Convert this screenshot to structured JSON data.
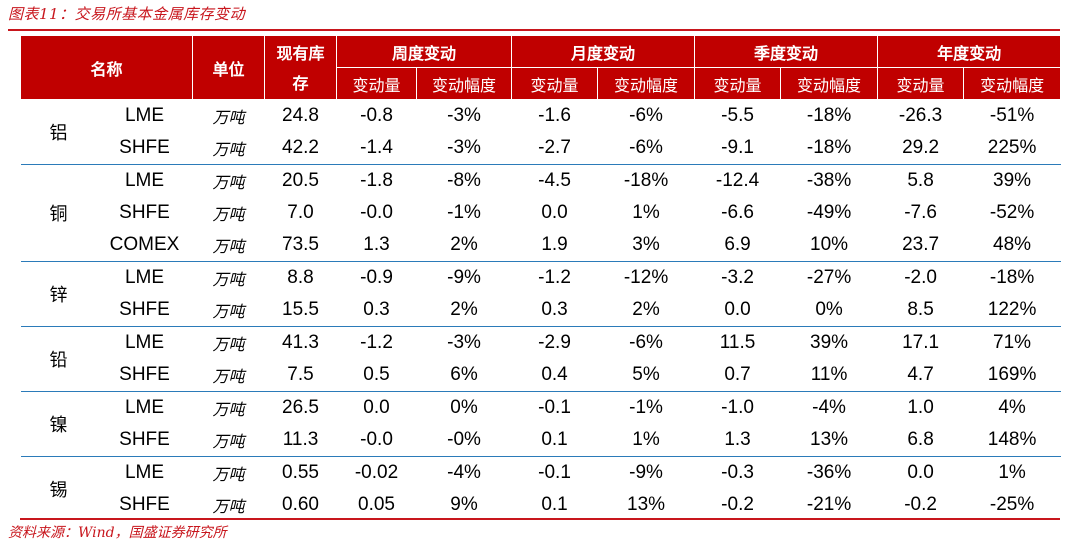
{
  "caption": "图表11：交易所基本金属库存变动",
  "source": "资料来源：Wind，国盛证券研究所",
  "header": {
    "name": "名称",
    "unit": "单位",
    "stock_line1": "现有库",
    "stock_line2": "存",
    "periods": [
      "周度变动",
      "月度变动",
      "季度变动",
      "年度变动"
    ],
    "change": "变动量",
    "change_pct": "变动幅度"
  },
  "groups": [
    {
      "metal": "铝",
      "rows": [
        {
          "exchange": "LME",
          "unit": "万吨",
          "stock": "24.8",
          "values": [
            "-0.8",
            "-3%",
            "-1.6",
            "-6%",
            "-5.5",
            "-18%",
            "-26.3",
            "-51%"
          ]
        },
        {
          "exchange": "SHFE",
          "unit": "万吨",
          "stock": "42.2",
          "values": [
            "-1.4",
            "-3%",
            "-2.7",
            "-6%",
            "-9.1",
            "-18%",
            "29.2",
            "225%"
          ]
        }
      ]
    },
    {
      "metal": "铜",
      "rows": [
        {
          "exchange": "LME",
          "unit": "万吨",
          "stock": "20.5",
          "values": [
            "-1.8",
            "-8%",
            "-4.5",
            "-18%",
            "-12.4",
            "-38%",
            "5.8",
            "39%"
          ]
        },
        {
          "exchange": "SHFE",
          "unit": "万吨",
          "stock": "7.0",
          "values": [
            "-0.0",
            "-1%",
            "0.0",
            "1%",
            "-6.6",
            "-49%",
            "-7.6",
            "-52%"
          ]
        },
        {
          "exchange": "COMEX",
          "unit": "万吨",
          "stock": "73.5",
          "values": [
            "1.3",
            "2%",
            "1.9",
            "3%",
            "6.9",
            "10%",
            "23.7",
            "48%"
          ]
        }
      ]
    },
    {
      "metal": "锌",
      "rows": [
        {
          "exchange": "LME",
          "unit": "万吨",
          "stock": "8.8",
          "values": [
            "-0.9",
            "-9%",
            "-1.2",
            "-12%",
            "-3.2",
            "-27%",
            "-2.0",
            "-18%"
          ]
        },
        {
          "exchange": "SHFE",
          "unit": "万吨",
          "stock": "15.5",
          "values": [
            "0.3",
            "2%",
            "0.3",
            "2%",
            "0.0",
            "0%",
            "8.5",
            "122%"
          ]
        }
      ]
    },
    {
      "metal": "铅",
      "rows": [
        {
          "exchange": "LME",
          "unit": "万吨",
          "stock": "41.3",
          "values": [
            "-1.2",
            "-3%",
            "-2.9",
            "-6%",
            "11.5",
            "39%",
            "17.1",
            "71%"
          ]
        },
        {
          "exchange": "SHFE",
          "unit": "万吨",
          "stock": "7.5",
          "values": [
            "0.5",
            "6%",
            "0.4",
            "5%",
            "0.7",
            "11%",
            "4.7",
            "169%"
          ]
        }
      ]
    },
    {
      "metal": "镍",
      "rows": [
        {
          "exchange": "LME",
          "unit": "万吨",
          "stock": "26.5",
          "values": [
            "0.0",
            "0%",
            "-0.1",
            "-1%",
            "-1.0",
            "-4%",
            "1.0",
            "4%"
          ]
        },
        {
          "exchange": "SHFE",
          "unit": "万吨",
          "stock": "11.3",
          "values": [
            "-0.0",
            "-0%",
            "0.1",
            "1%",
            "1.3",
            "13%",
            "6.8",
            "148%"
          ]
        }
      ]
    },
    {
      "metal": "锡",
      "rows": [
        {
          "exchange": "LME",
          "unit": "万吨",
          "stock": "0.55",
          "values": [
            "-0.02",
            "-4%",
            "-0.1",
            "-9%",
            "-0.3",
            "-36%",
            "0.0",
            "1%"
          ]
        },
        {
          "exchange": "SHFE",
          "unit": "万吨",
          "stock": "0.60",
          "values": [
            "0.05",
            "9%",
            "0.1",
            "13%",
            "-0.2",
            "-21%",
            "-0.2",
            "-25%"
          ]
        }
      ]
    }
  ],
  "colors": {
    "header_bg": "#c00000",
    "accent": "#c8161d",
    "positive": "#e10b0b",
    "negative": "#12a63a",
    "group_rule": "#2b7bb9"
  }
}
